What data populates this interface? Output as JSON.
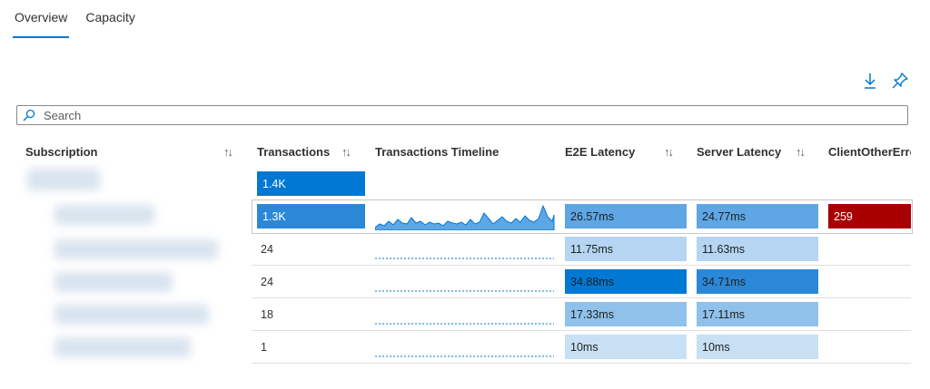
{
  "tabs": [
    {
      "label": "Overview",
      "active": true
    },
    {
      "label": "Capacity",
      "active": false
    }
  ],
  "toolbar": {
    "download_icon": "download-icon",
    "pin_icon": "pin-icon"
  },
  "search": {
    "placeholder": "Search",
    "value": ""
  },
  "columns": [
    {
      "label": "Subscription",
      "sortable": true
    },
    {
      "label": "Transactions",
      "sortable": true
    },
    {
      "label": "Transactions Timeline",
      "sortable": false
    },
    {
      "label": "E2E Latency",
      "sortable": true
    },
    {
      "label": "Server Latency",
      "sortable": true
    },
    {
      "label": "ClientOtherErro",
      "sortable": false
    }
  ],
  "rows": [
    {
      "transactions": "1.4K",
      "timeline": "",
      "e2e": "",
      "server": "",
      "client_other": ""
    },
    {
      "transactions": "1.3K",
      "timeline": "spark-filled",
      "e2e": "26.57ms",
      "server": "24.77ms",
      "client_other": "259"
    },
    {
      "transactions": "24",
      "timeline": "spark-dotted",
      "e2e": "11.75ms",
      "server": "11.63ms",
      "client_other": ""
    },
    {
      "transactions": "24",
      "timeline": "spark-dotted",
      "e2e": "34.88ms",
      "server": "34.71ms",
      "client_other": ""
    },
    {
      "transactions": "18",
      "timeline": "spark-dotted",
      "e2e": "17.33ms",
      "server": "17.11ms",
      "client_other": ""
    },
    {
      "transactions": "1",
      "timeline": "spark-dotted",
      "e2e": "10ms",
      "server": "10ms",
      "client_other": ""
    }
  ],
  "colors": {
    "accent": "#0078d4",
    "heat_dark": "#0078d4",
    "heat_mid": "#2b88d8",
    "heat_light": "#5ea6e4",
    "heat_pale": "#b5d5f2",
    "heat_faint": "#c7e0f4",
    "error_red": "#a80000"
  },
  "sort_glyph": "↑↓"
}
